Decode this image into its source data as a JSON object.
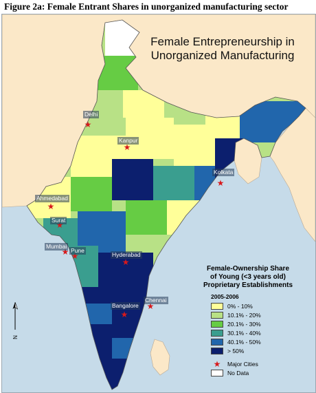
{
  "caption": "Figure 2a: Female Entrant Shares in unorganized manufacturing sector",
  "map_title_line1": "Female Entrepreneurship in",
  "map_title_line2": "Unorganized Manufacturing",
  "cities": [
    {
      "name": "Delhi"
    },
    {
      "name": "Kanpur"
    },
    {
      "name": "Kolkata"
    },
    {
      "name": "Ahmedabad"
    },
    {
      "name": "Surat"
    },
    {
      "name": "Mumbai"
    },
    {
      "name": "Pune"
    },
    {
      "name": "Hyderabad"
    },
    {
      "name": "Bangalore"
    },
    {
      "name": "Chennai"
    }
  ],
  "legend": {
    "title_line1": "Female-Ownership Share",
    "title_line2": "of Young  (<3 years old)",
    "title_line3": "Proprietary Establishments",
    "year": "2005-2006",
    "classes": [
      {
        "label": "0% - 10%",
        "color": "#ffff99"
      },
      {
        "label": "10.1% - 20%",
        "color": "#b8e186"
      },
      {
        "label": "20.1% - 30%",
        "color": "#66cc44"
      },
      {
        "label": "30.1% - 40%",
        "color": "#3a9e8f"
      },
      {
        "label": "40.1% - 50%",
        "color": "#2166ac"
      },
      {
        "label": "> 50%",
        "color": "#0c1f6e"
      }
    ],
    "major_cities_label": "Major Cities",
    "no_data_label": "No Data",
    "no_data_color": "#ffffff"
  },
  "north_label": "N",
  "colors": {
    "sea": "#c6dbe9",
    "neighbor_land": "#fbe8c8",
    "star": "#d7191c"
  }
}
